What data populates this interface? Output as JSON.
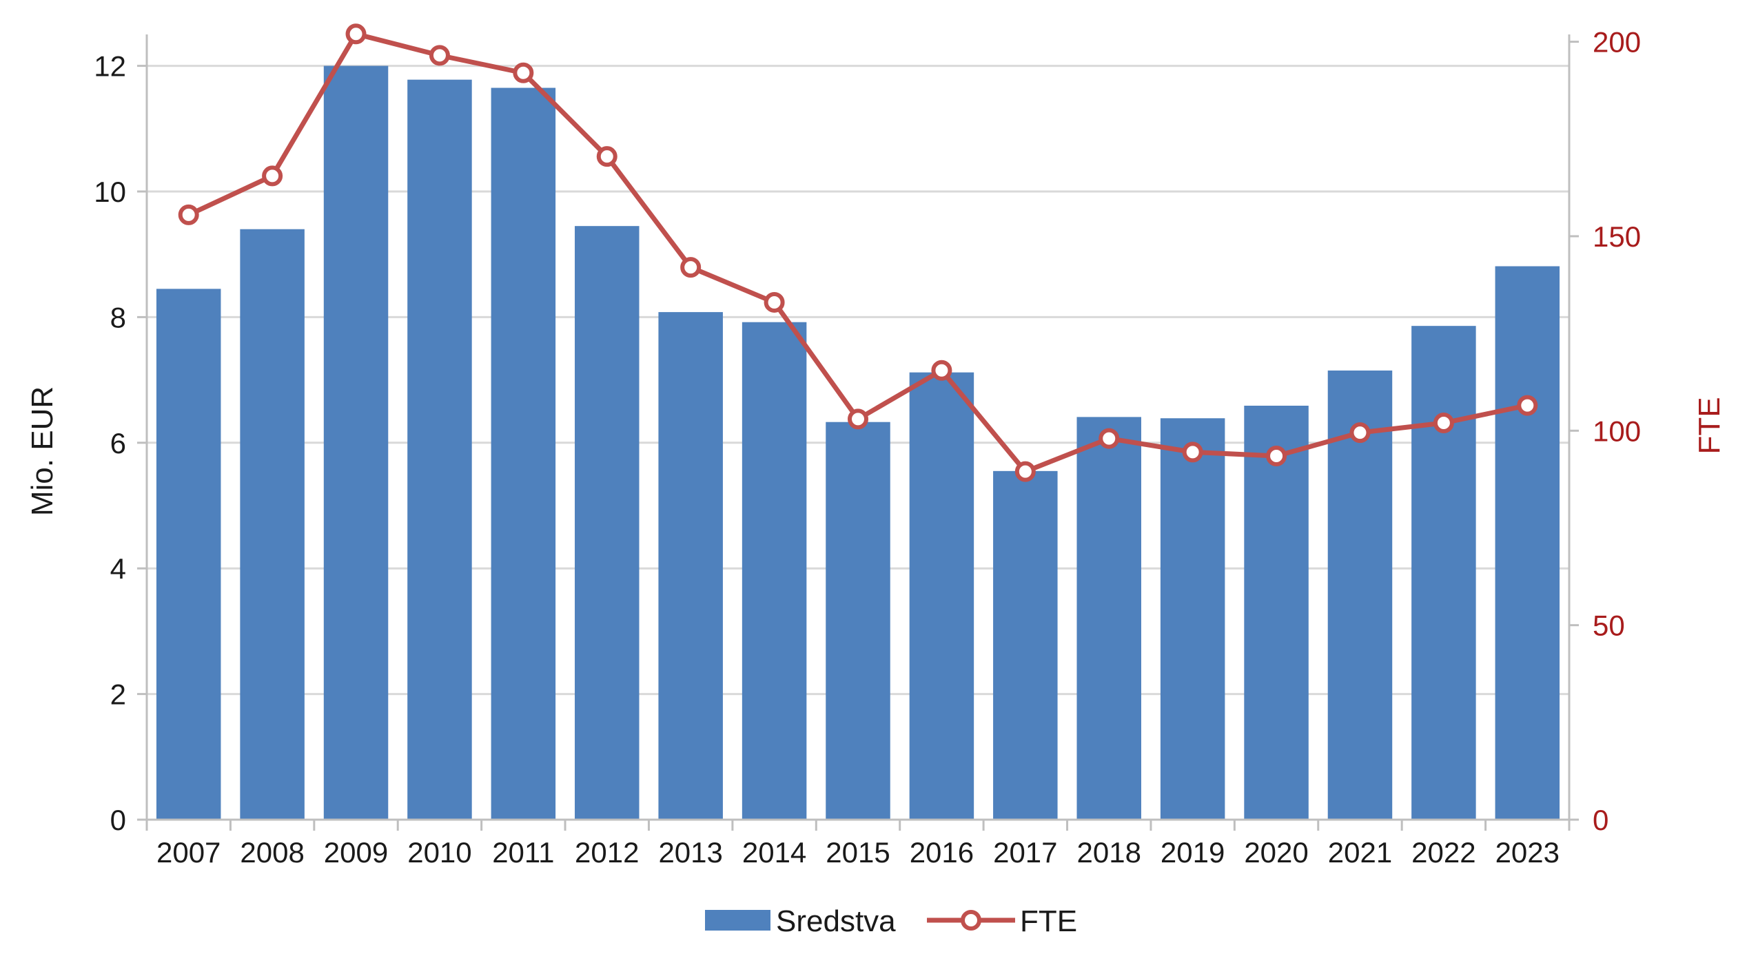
{
  "chart_data": {
    "type": "bar+line",
    "categories": [
      "2007",
      "2008",
      "2009",
      "2010",
      "2011",
      "2012",
      "2013",
      "2014",
      "2015",
      "2016",
      "2017",
      "2018",
      "2019",
      "2020",
      "2021",
      "2022",
      "2023"
    ],
    "series": [
      {
        "name": "Sredstva",
        "type": "bar",
        "axis": "left",
        "color": "#4f81bd",
        "values": [
          8.45,
          9.4,
          12.0,
          11.78,
          11.65,
          9.45,
          8.08,
          7.92,
          6.33,
          7.12,
          5.55,
          6.41,
          6.39,
          6.59,
          7.15,
          7.86,
          8.81
        ]
      },
      {
        "name": "FTE",
        "type": "line",
        "axis": "right",
        "color": "#c0504d",
        "values": [
          155.5,
          165.5,
          202,
          196.5,
          192,
          170.5,
          142,
          133,
          103,
          115.5,
          89.5,
          98,
          94.5,
          93.5,
          99.5,
          102,
          106.5
        ]
      }
    ],
    "y_left": {
      "label": "Mio. EUR",
      "min": 0,
      "max": 12.5,
      "ticks": [
        0,
        2,
        4,
        6,
        8,
        10,
        12
      ]
    },
    "y_right": {
      "label": "FTE",
      "min": 0,
      "max": 200,
      "ticks": [
        0,
        50,
        100,
        150,
        200
      ],
      "color": "#a81c1c"
    },
    "grid": true,
    "legend": {
      "position": "bottom",
      "entries": [
        "Sredstva",
        "FTE"
      ]
    }
  }
}
